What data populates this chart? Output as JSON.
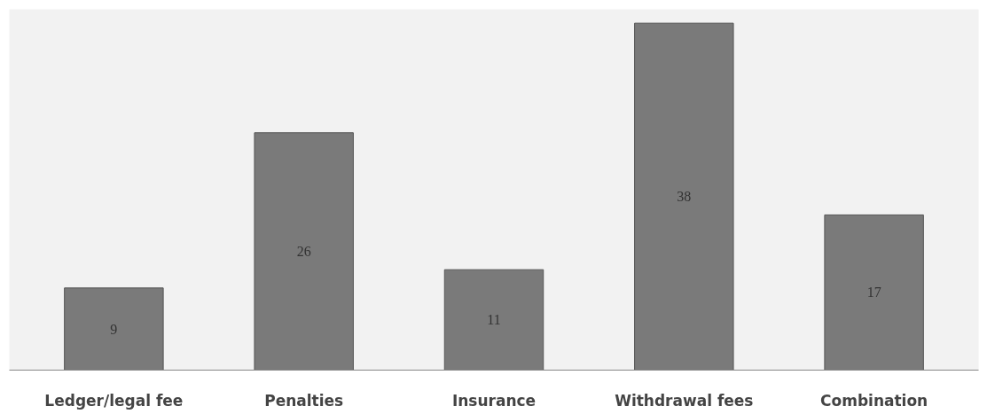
{
  "chart_data": {
    "type": "bar",
    "categories": [
      "Ledger/legal fee",
      "Penalties",
      "Insurance",
      "Withdrawal fees",
      "Combination"
    ],
    "values": [
      9,
      26,
      11,
      38,
      17
    ],
    "color": "#7a7a7a",
    "data_labels": true,
    "grid": false
  }
}
